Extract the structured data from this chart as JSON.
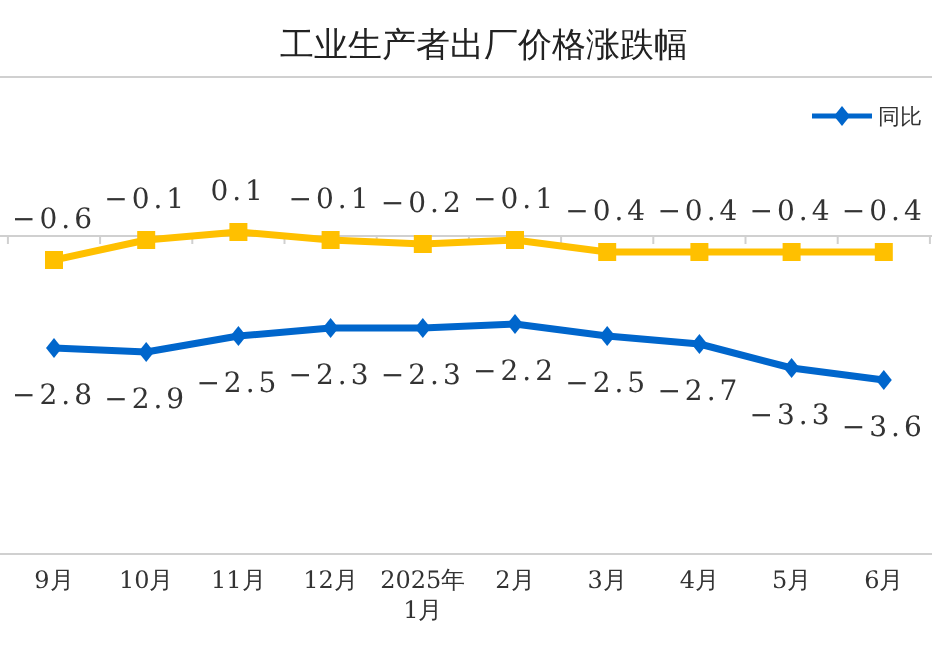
{
  "chart_data": {
    "type": "line",
    "title": "工业生产者出厂价格涨跌幅",
    "categories": [
      "9月",
      "10月",
      "11月",
      "12月",
      "2025年1月",
      "2月",
      "3月",
      "4月",
      "5月",
      "6月"
    ],
    "series": [
      {
        "name": "同比",
        "color": "#0066cc",
        "marker": "diamond",
        "values": [
          -2.8,
          -2.9,
          -2.5,
          -2.3,
          -2.3,
          -2.2,
          -2.5,
          -2.7,
          -3.3,
          -3.6
        ]
      },
      {
        "color": "#ffc000",
        "marker": "square",
        "values": [
          -0.6,
          -0.1,
          0.1,
          -0.1,
          -0.2,
          -0.1,
          -0.4,
          -0.4,
          -0.4,
          -0.4
        ]
      }
    ],
    "data_labels": true,
    "legend": "top right",
    "grid": false
  }
}
